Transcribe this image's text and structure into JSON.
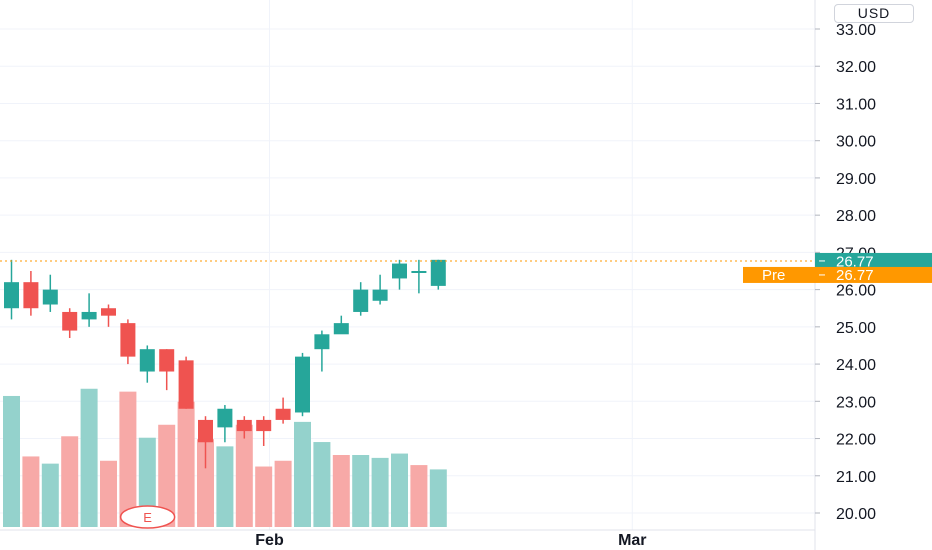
{
  "currency": "USD",
  "chart_data": {
    "type": "candlestick",
    "ylim": [
      19.7,
      33.5
    ],
    "y_ticks": [
      "20.00",
      "21.00",
      "22.00",
      "23.00",
      "24.00",
      "25.00",
      "26.00",
      "27.00",
      "28.00",
      "29.00",
      "30.00",
      "31.00",
      "32.00",
      "33.00"
    ],
    "x_labels": [
      {
        "text": "Feb",
        "index": 13.3
      },
      {
        "text": "Mar",
        "index": 32
      }
    ],
    "candles": [
      {
        "o": 25.5,
        "h": 26.8,
        "l": 25.2,
        "c": 26.2
      },
      {
        "o": 26.2,
        "h": 26.5,
        "l": 25.3,
        "c": 25.5
      },
      {
        "o": 25.6,
        "h": 26.4,
        "l": 25.4,
        "c": 26.0
      },
      {
        "o": 25.4,
        "h": 25.5,
        "l": 24.7,
        "c": 24.9
      },
      {
        "o": 25.2,
        "h": 25.9,
        "l": 25.0,
        "c": 25.4
      },
      {
        "o": 25.5,
        "h": 25.6,
        "l": 25.0,
        "c": 25.3
      },
      {
        "o": 25.1,
        "h": 25.2,
        "l": 24.0,
        "c": 24.2
      },
      {
        "o": 23.8,
        "h": 24.5,
        "l": 23.5,
        "c": 24.4
      },
      {
        "o": 24.4,
        "h": 24.4,
        "l": 23.3,
        "c": 23.8
      },
      {
        "o": 24.1,
        "h": 24.2,
        "l": 22.8,
        "c": 22.8
      },
      {
        "o": 22.5,
        "h": 22.6,
        "l": 21.2,
        "c": 21.9
      },
      {
        "o": 22.3,
        "h": 22.9,
        "l": 21.9,
        "c": 22.8
      },
      {
        "o": 22.5,
        "h": 22.6,
        "l": 22.0,
        "c": 22.2
      },
      {
        "o": 22.5,
        "h": 22.6,
        "l": 21.8,
        "c": 22.2
      },
      {
        "o": 22.8,
        "h": 23.1,
        "l": 22.4,
        "c": 22.5
      },
      {
        "o": 22.7,
        "h": 24.3,
        "l": 22.6,
        "c": 24.2
      },
      {
        "o": 24.4,
        "h": 24.9,
        "l": 23.8,
        "c": 24.8
      },
      {
        "o": 24.8,
        "h": 25.3,
        "l": 24.9,
        "c": 25.1
      },
      {
        "o": 25.4,
        "h": 26.2,
        "l": 25.3,
        "c": 26.0
      },
      {
        "o": 25.7,
        "h": 26.4,
        "l": 25.6,
        "c": 26.0
      },
      {
        "o": 26.3,
        "h": 26.8,
        "l": 26.0,
        "c": 26.7
      },
      {
        "o": 26.5,
        "h": 26.8,
        "l": 25.9,
        "c": 26.5
      },
      {
        "o": 26.1,
        "h": 26.8,
        "l": 26.0,
        "c": 26.8
      }
    ],
    "volume": [
      {
        "v": 0.91,
        "up": true
      },
      {
        "v": 0.49,
        "up": false
      },
      {
        "v": 0.44,
        "up": true
      },
      {
        "v": 0.63,
        "up": false
      },
      {
        "v": 0.96,
        "up": true
      },
      {
        "v": 0.46,
        "up": false
      },
      {
        "v": 0.94,
        "up": false
      },
      {
        "v": 0.62,
        "up": true
      },
      {
        "v": 0.71,
        "up": false
      },
      {
        "v": 0.87,
        "up": false
      },
      {
        "v": 0.61,
        "up": false
      },
      {
        "v": 0.56,
        "up": true
      },
      {
        "v": 0.71,
        "up": false
      },
      {
        "v": 0.42,
        "up": false
      },
      {
        "v": 0.46,
        "up": false
      },
      {
        "v": 0.73,
        "up": true
      },
      {
        "v": 0.59,
        "up": true
      },
      {
        "v": 0.5,
        "up": false
      },
      {
        "v": 0.5,
        "up": true
      },
      {
        "v": 0.48,
        "up": true
      },
      {
        "v": 0.51,
        "up": true
      },
      {
        "v": 0.43,
        "up": false
      },
      {
        "v": 0.4,
        "up": true
      }
    ],
    "last_price": {
      "label": "26.77",
      "value": 26.77,
      "color": "#26a69a"
    },
    "premarket": {
      "tag": "Pre",
      "label": "26.77",
      "value": 26.77,
      "color": "#ff9800"
    },
    "earnings_marker": "E",
    "colors": {
      "up": "#26a69a",
      "down": "#ef5350",
      "up_vol": "#94d2cc",
      "down_vol": "#f7a9a7",
      "grid": "#f0f3fa"
    }
  }
}
